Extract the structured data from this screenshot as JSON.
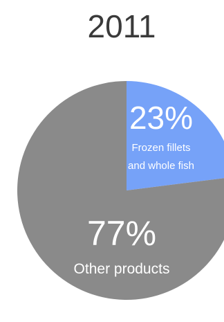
{
  "chart_data": {
    "type": "pie",
    "title": "2011",
    "slices": [
      {
        "name": "Frozen fillets and whole fish",
        "name_lines": [
          "Frozen fillets",
          "and whole fish"
        ],
        "value": 23,
        "value_label": "23%",
        "color": "#76a2f8"
      },
      {
        "name": "Other products",
        "name_lines": [
          "Other products"
        ],
        "value": 77,
        "value_label": "77%",
        "color": "#8a8a8a"
      }
    ],
    "start_angle": "12 o'clock",
    "direction": "clockwise"
  }
}
